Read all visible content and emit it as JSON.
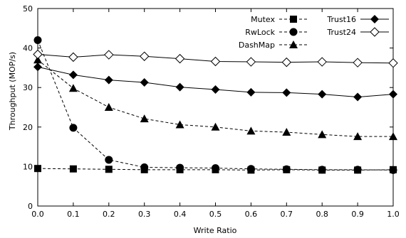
{
  "chart_data": {
    "type": "line",
    "xlabel": "Write Ratio",
    "ylabel": "Throughput (MOP/s)",
    "xlim": [
      0.0,
      1.0
    ],
    "ylim": [
      0,
      50
    ],
    "x_ticks": [
      "0.0",
      "0.1",
      "0.2",
      "0.3",
      "0.4",
      "0.5",
      "0.6",
      "0.7",
      "0.8",
      "0.9",
      "1.0"
    ],
    "y_ticks": [
      "0",
      "10",
      "20",
      "30",
      "40",
      "50"
    ],
    "x": [
      0.0,
      0.1,
      0.2,
      0.3,
      0.4,
      0.5,
      0.6,
      0.7,
      0.8,
      0.9,
      1.0
    ],
    "grid": false,
    "legend": "top-right",
    "series": [
      {
        "name": "Mutex",
        "line": "dashed",
        "marker": "square-filled",
        "values": [
          9.5,
          9.4,
          9.3,
          9.2,
          9.2,
          9.2,
          9.1,
          9.2,
          9.1,
          9.1,
          9.2
        ]
      },
      {
        "name": "RwLock",
        "line": "dashed",
        "marker": "circle-filled",
        "values": [
          42.0,
          19.8,
          11.7,
          9.8,
          9.7,
          9.6,
          9.4,
          9.3,
          9.2,
          9.2,
          9.1
        ]
      },
      {
        "name": "DashMap",
        "line": "dashed",
        "marker": "triangle-filled",
        "values": [
          37.0,
          29.8,
          25.0,
          22.1,
          20.6,
          20.0,
          19.0,
          18.7,
          18.1,
          17.6,
          17.6
        ]
      },
      {
        "name": "Trust16",
        "line": "solid",
        "marker": "diamond-filled",
        "values": [
          35.2,
          33.2,
          31.9,
          31.3,
          30.1,
          29.5,
          28.8,
          28.7,
          28.3,
          27.6,
          28.3
        ]
      },
      {
        "name": "Trust24",
        "line": "solid",
        "marker": "diamond-open",
        "values": [
          38.4,
          37.7,
          38.3,
          37.9,
          37.3,
          36.6,
          36.5,
          36.4,
          36.5,
          36.3,
          36.2
        ]
      }
    ]
  }
}
